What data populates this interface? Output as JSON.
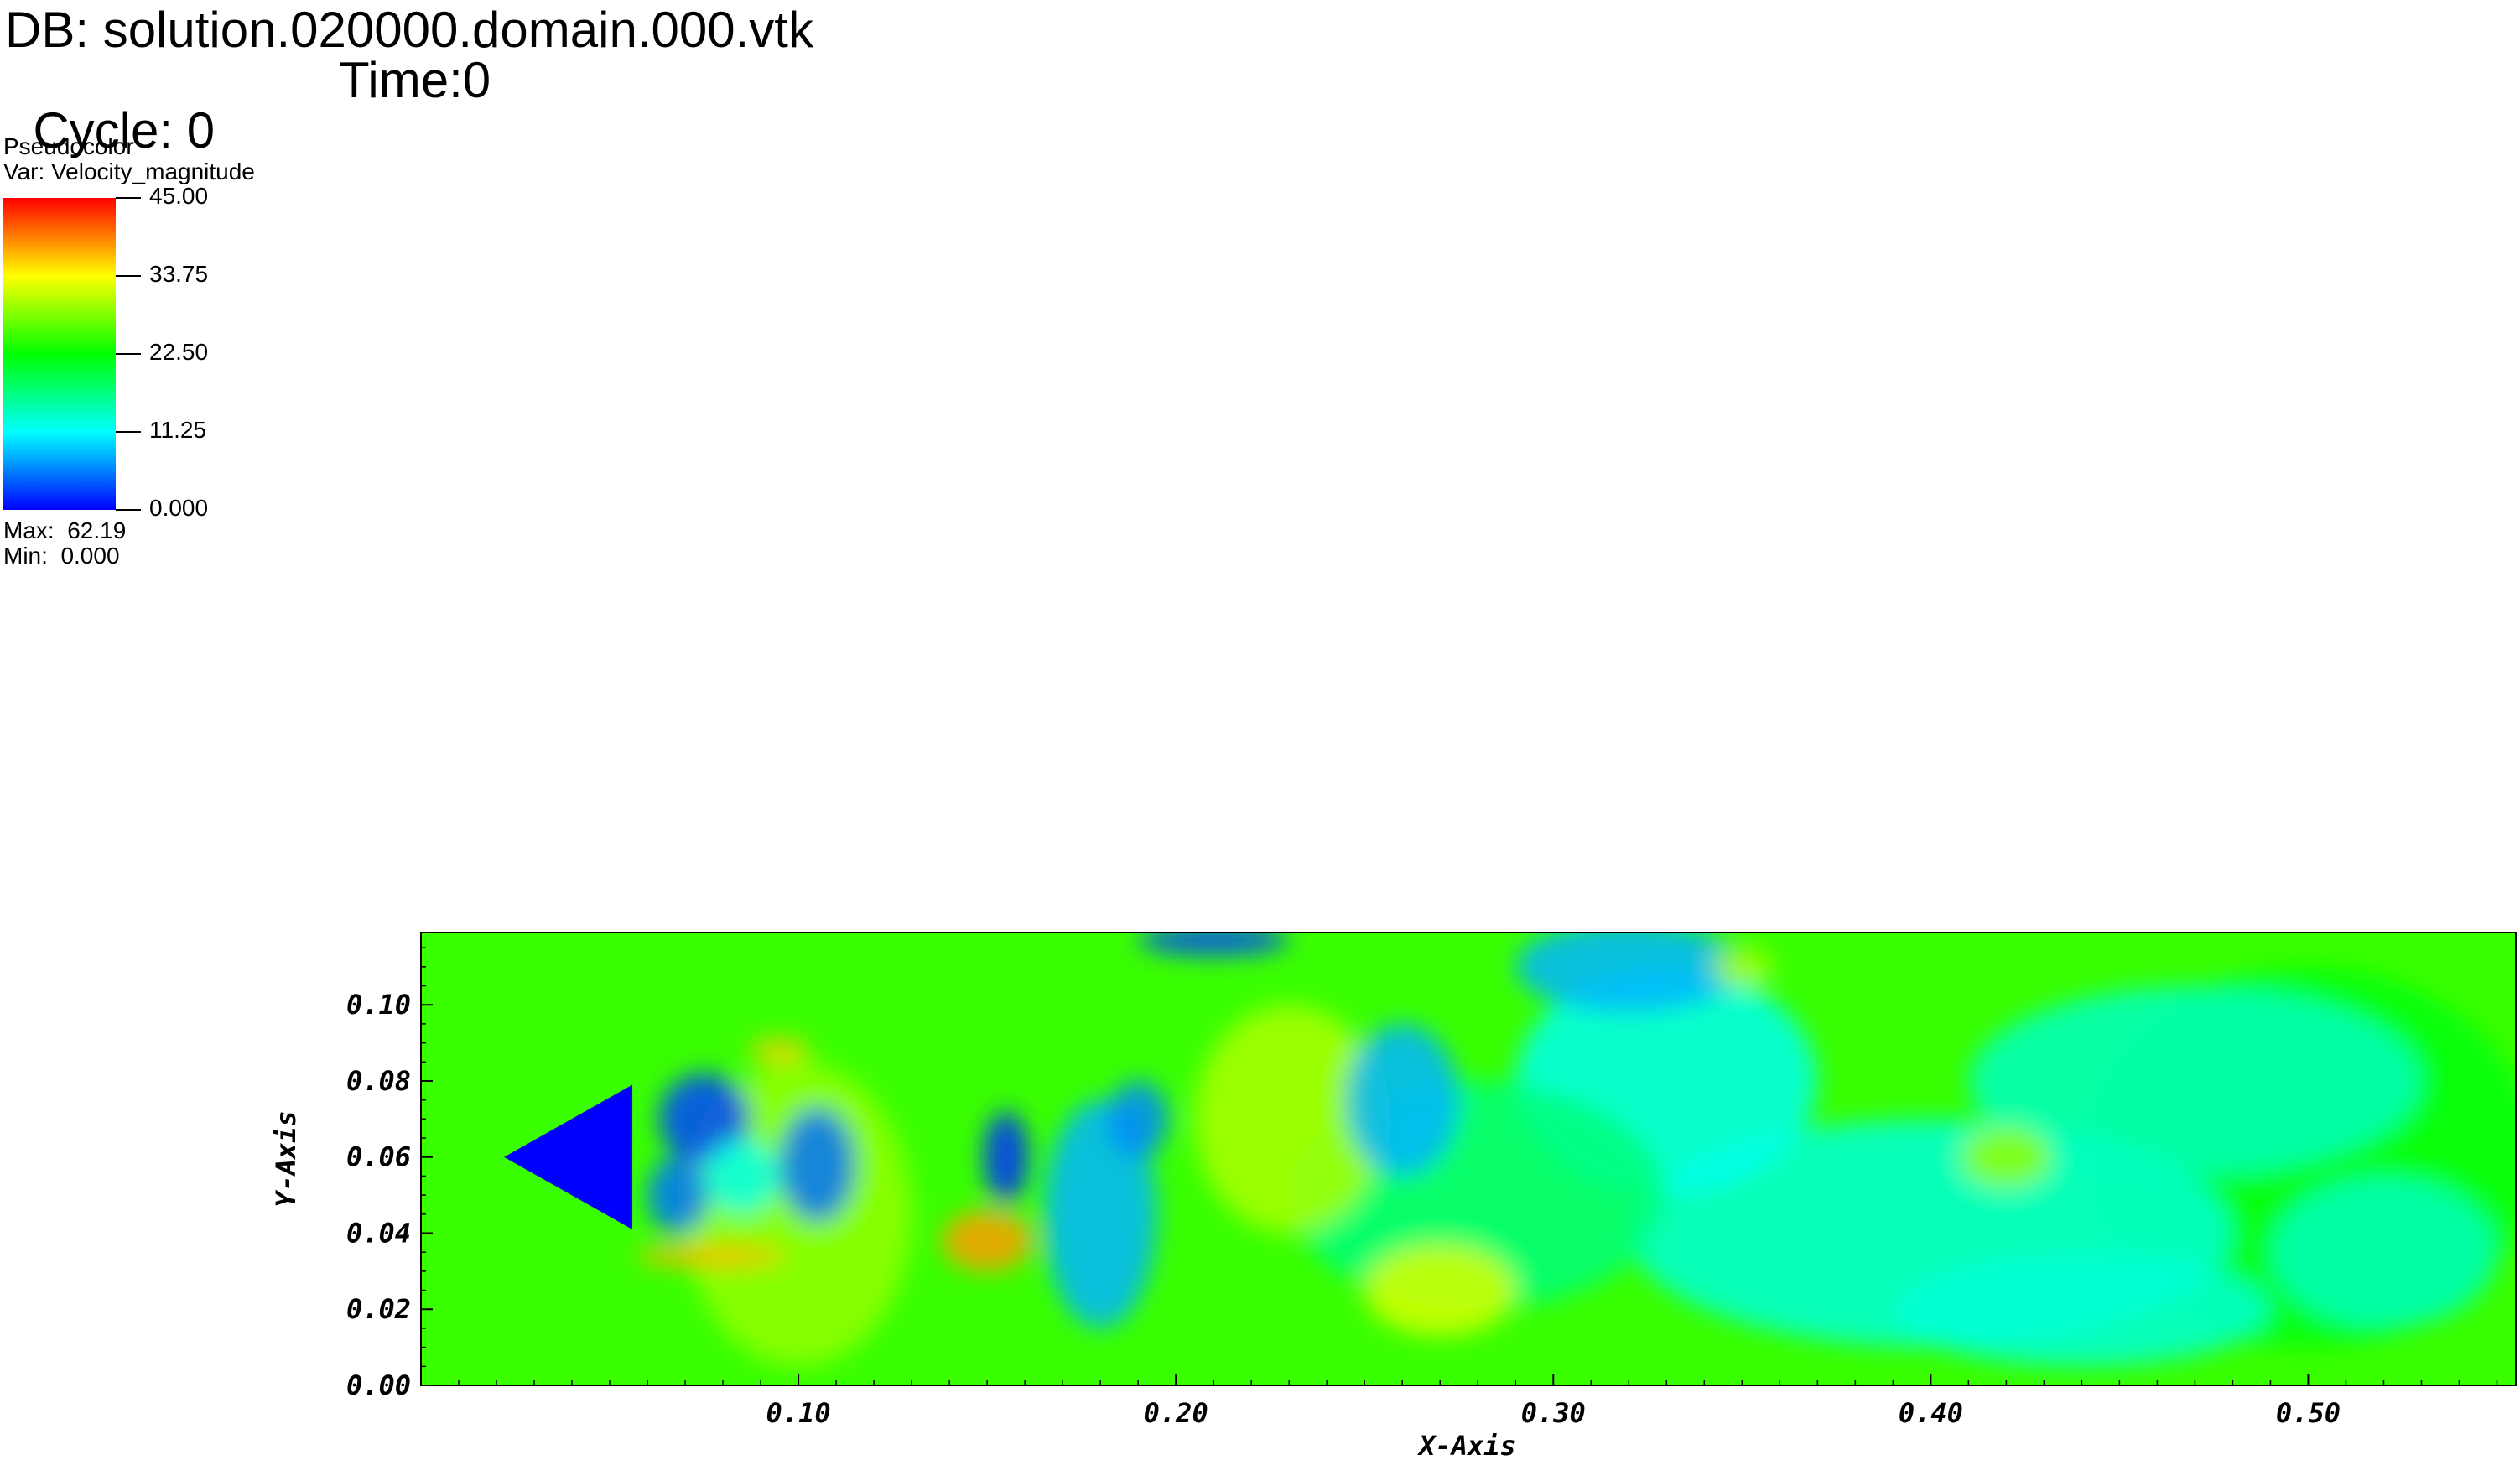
{
  "header": {
    "db_label": "DB: solution.020000.domain.000.vtk",
    "cycle_label": "Cycle: 0",
    "time_label": "Time:0"
  },
  "legend": {
    "plot_type": "Pseudocolor",
    "variable": "Var: Velocity_magnitude",
    "ticks": [
      "45.00",
      "33.75",
      "22.50",
      "11.25",
      "0.000"
    ],
    "max_label": "Max:  62.19",
    "min_label": "Min:  0.000",
    "colormap": [
      "#ff0000",
      "#ffff00",
      "#00ff00",
      "#00ffff",
      "#0000ff"
    ]
  },
  "chart_data": {
    "type": "heatmap",
    "title": "",
    "xlabel": "X-Axis",
    "ylabel": "Y-Axis",
    "xlim": [
      0.0,
      0.555
    ],
    "ylim": [
      0.0,
      0.119
    ],
    "x_ticks": [
      "0.10",
      "0.20",
      "0.30",
      "0.40",
      "0.50"
    ],
    "y_ticks": [
      "0.00",
      "0.02",
      "0.04",
      "0.06",
      "0.08",
      "0.10"
    ],
    "color_range": [
      0.0,
      45.0
    ],
    "background_value": 25,
    "obstacle": {
      "shape": "triangle",
      "vertices": [
        [
          0.022,
          0.06
        ],
        [
          0.056,
          0.079
        ],
        [
          0.056,
          0.041
        ]
      ],
      "value": 0
    },
    "features": [
      {
        "x": 0.5,
        "y": 0.06,
        "rx": 0.06,
        "ry": 0.05,
        "value": 22
      },
      {
        "x": 0.4,
        "y": 0.04,
        "rx": 0.08,
        "ry": 0.03,
        "value": 13
      },
      {
        "x": 0.47,
        "y": 0.08,
        "rx": 0.06,
        "ry": 0.025,
        "value": 14
      },
      {
        "x": 0.33,
        "y": 0.08,
        "rx": 0.04,
        "ry": 0.03,
        "value": 12
      },
      {
        "x": 0.28,
        "y": 0.05,
        "rx": 0.05,
        "ry": 0.03,
        "value": 17
      },
      {
        "x": 0.1,
        "y": 0.045,
        "rx": 0.03,
        "ry": 0.04,
        "value": 29
      },
      {
        "x": 0.23,
        "y": 0.07,
        "rx": 0.025,
        "ry": 0.03,
        "value": 30
      },
      {
        "x": 0.27,
        "y": 0.025,
        "rx": 0.02,
        "ry": 0.012,
        "value": 32
      },
      {
        "x": 0.075,
        "y": 0.07,
        "rx": 0.012,
        "ry": 0.012,
        "value": 3
      },
      {
        "x": 0.068,
        "y": 0.05,
        "rx": 0.008,
        "ry": 0.01,
        "value": 5
      },
      {
        "x": 0.105,
        "y": 0.058,
        "rx": 0.01,
        "ry": 0.015,
        "value": 5
      },
      {
        "x": 0.085,
        "y": 0.055,
        "rx": 0.01,
        "ry": 0.01,
        "value": 12
      },
      {
        "x": 0.155,
        "y": 0.06,
        "rx": 0.006,
        "ry": 0.012,
        "value": 2
      },
      {
        "x": 0.15,
        "y": 0.038,
        "rx": 0.012,
        "ry": 0.008,
        "value": 38
      },
      {
        "x": 0.18,
        "y": 0.045,
        "rx": 0.015,
        "ry": 0.03,
        "value": 8
      },
      {
        "x": 0.19,
        "y": 0.07,
        "rx": 0.008,
        "ry": 0.01,
        "value": 6
      },
      {
        "x": 0.26,
        "y": 0.075,
        "rx": 0.015,
        "ry": 0.02,
        "value": 8
      },
      {
        "x": 0.32,
        "y": 0.11,
        "rx": 0.03,
        "ry": 0.012,
        "value": 8
      },
      {
        "x": 0.21,
        "y": 0.117,
        "rx": 0.02,
        "ry": 0.004,
        "value": 3
      },
      {
        "x": 0.44,
        "y": 0.02,
        "rx": 0.05,
        "ry": 0.015,
        "value": 13
      },
      {
        "x": 0.52,
        "y": 0.035,
        "rx": 0.03,
        "ry": 0.02,
        "value": 14
      },
      {
        "x": 0.35,
        "y": 0.11,
        "rx": 0.008,
        "ry": 0.005,
        "value": 30
      },
      {
        "x": 0.42,
        "y": 0.06,
        "rx": 0.012,
        "ry": 0.008,
        "value": 29
      },
      {
        "x": 0.095,
        "y": 0.088,
        "rx": 0.008,
        "ry": 0.003,
        "value": 36
      },
      {
        "x": 0.077,
        "y": 0.034,
        "rx": 0.02,
        "ry": 0.003,
        "value": 37
      }
    ]
  }
}
